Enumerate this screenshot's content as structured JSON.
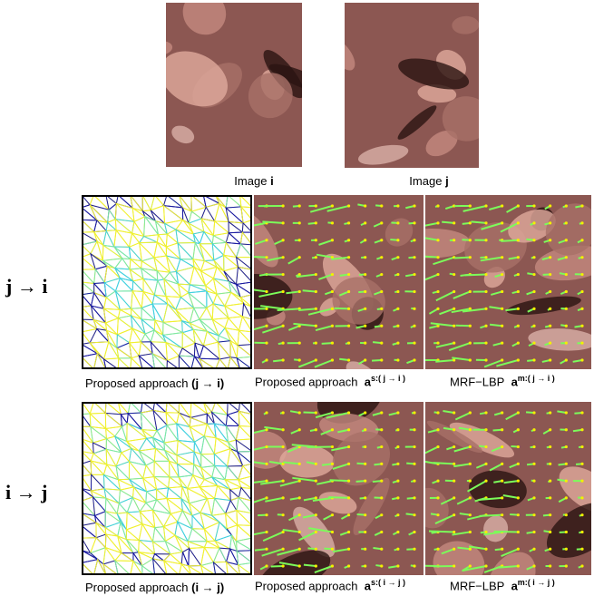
{
  "top_images": [
    {
      "label": "Image",
      "symbol": "i"
    },
    {
      "label": "Image",
      "symbol": "j"
    }
  ],
  "rows": [
    {
      "direction": "j → i",
      "captions": [
        {
          "text": "Proposed approach",
          "bold": "(j → i)"
        },
        {
          "text": "Proposed approach",
          "symbol": "a",
          "superscript": "s:( j → i )"
        },
        {
          "text": "MRF−LBP",
          "symbol": "a",
          "superscript": "m:( j → i )"
        }
      ]
    },
    {
      "direction": "i → j",
      "captions": [
        {
          "text": "Proposed approach",
          "bold": "(i → j)"
        },
        {
          "text": "Proposed approach",
          "symbol": "a",
          "superscript": "s:( i → j )"
        },
        {
          "text": "MRF−LBP",
          "symbol": "a",
          "superscript": "m:( i → j )"
        }
      ]
    }
  ]
}
